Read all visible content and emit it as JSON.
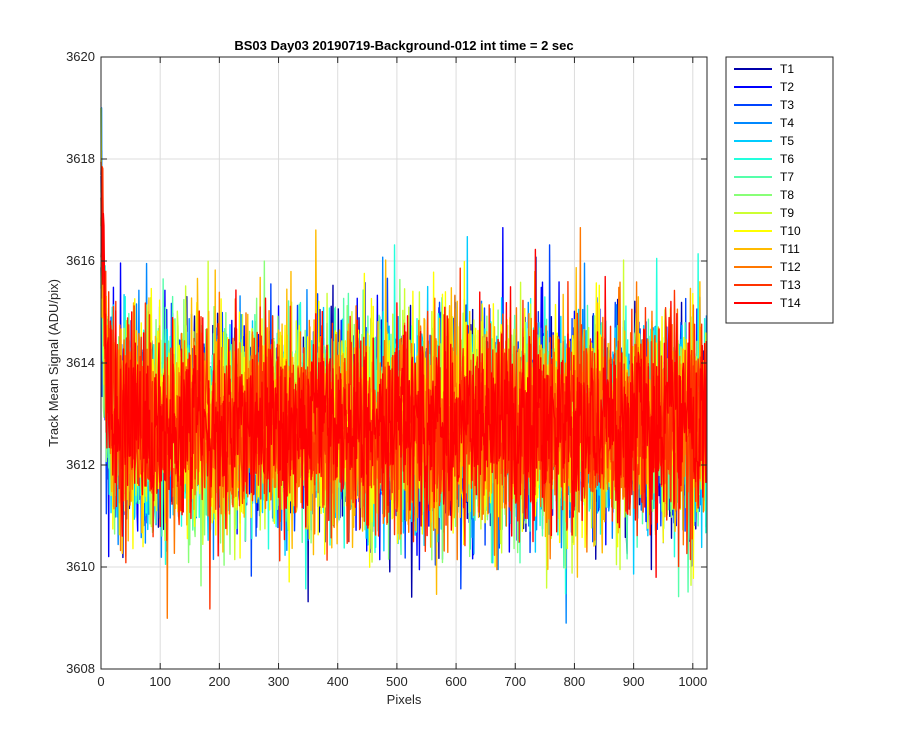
{
  "chart_data": {
    "type": "line",
    "title": "BS03 Day03 20190719-Background-012 int time = 2 sec",
    "xlabel": "Pixels",
    "ylabel": "Track Mean Signal (ADU/pix)",
    "xlim": [
      0,
      1024
    ],
    "ylim": [
      3608,
      3620
    ],
    "xticks": [
      0,
      100,
      200,
      300,
      400,
      500,
      600,
      700,
      800,
      900,
      1000
    ],
    "yticks": [
      3608,
      3610,
      3612,
      3614,
      3616,
      3618,
      3620
    ],
    "grid": true,
    "legend_position": "outside-right-top",
    "n_points": 1024,
    "series": [
      {
        "name": "T1",
        "color": "#0000aa",
        "mean": 3612.8,
        "noise_sd": 1.0,
        "start_value": 3618.0
      },
      {
        "name": "T2",
        "color": "#0000ff",
        "mean": 3612.8,
        "noise_sd": 1.0,
        "start_value": 3617.5
      },
      {
        "name": "T3",
        "color": "#0044ff",
        "mean": 3612.8,
        "noise_sd": 1.0,
        "start_value": 3617.0
      },
      {
        "name": "T4",
        "color": "#0088ff",
        "mean": 3612.8,
        "noise_sd": 1.0,
        "start_value": 3618.8
      },
      {
        "name": "T5",
        "color": "#00ccff",
        "mean": 3612.8,
        "noise_sd": 1.0,
        "start_value": 3617.8
      },
      {
        "name": "T6",
        "color": "#22ffdd",
        "mean": 3612.8,
        "noise_sd": 1.0,
        "start_value": 3617.2
      },
      {
        "name": "T7",
        "color": "#55ffaa",
        "mean": 3612.8,
        "noise_sd": 1.0,
        "start_value": 3616.8
      },
      {
        "name": "T8",
        "color": "#88ff77",
        "mean": 3612.8,
        "noise_sd": 1.0,
        "start_value": 3616.5
      },
      {
        "name": "T9",
        "color": "#ccff33",
        "mean": 3612.8,
        "noise_sd": 1.0,
        "start_value": 3617.0
      },
      {
        "name": "T10",
        "color": "#ffff00",
        "mean": 3612.8,
        "noise_sd": 1.0,
        "start_value": 3618.0
      },
      {
        "name": "T11",
        "color": "#ffbb00",
        "mean": 3612.8,
        "noise_sd": 1.0,
        "start_value": 3617.5
      },
      {
        "name": "T12",
        "color": "#ff7700",
        "mean": 3612.8,
        "noise_sd": 1.0,
        "start_value": 3616.9
      },
      {
        "name": "T13",
        "color": "#ff3300",
        "mean": 3612.8,
        "noise_sd": 1.0,
        "start_value": 3617.0
      },
      {
        "name": "T14",
        "color": "#ff0000",
        "mean": 3612.8,
        "noise_sd": 0.9,
        "start_value": 3617.6
      }
    ]
  }
}
